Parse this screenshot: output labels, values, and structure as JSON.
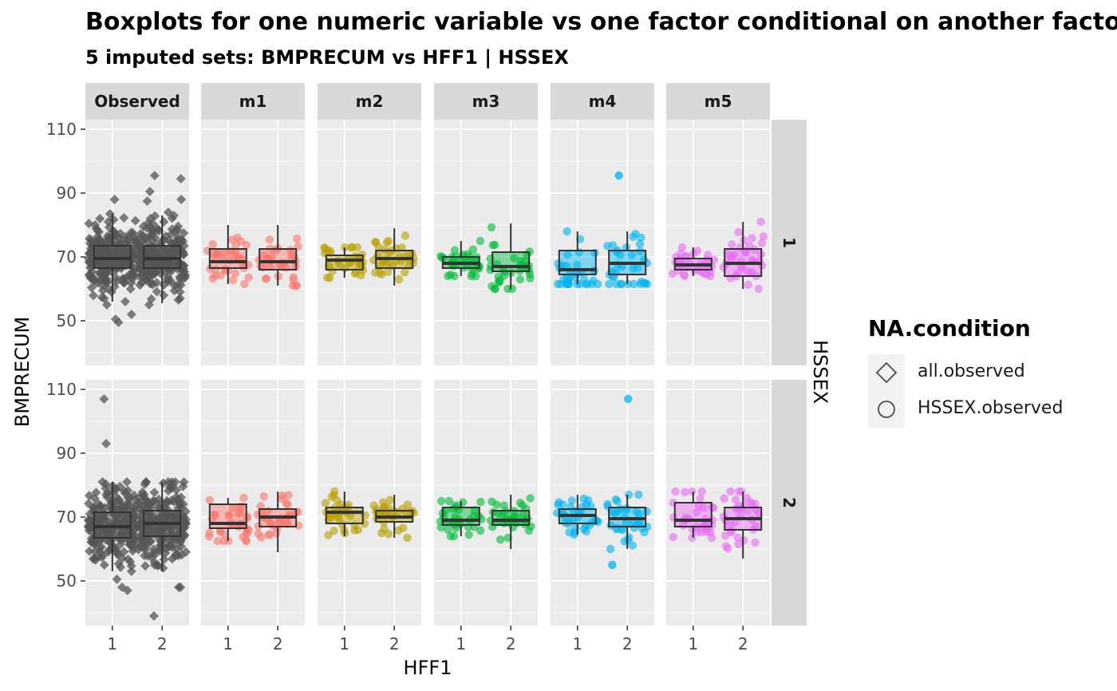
{
  "title": "Boxplots for one numeric variable vs one factor conditional on another factor",
  "subtitle": "5  imputed sets:  BMPRECUM vs HFF1 | HSSEX",
  "legend": {
    "title": "NA.condition",
    "entries": [
      {
        "label": "all.observed",
        "shape": "diamond"
      },
      {
        "label": "HSSEX.observed",
        "shape": "circle"
      }
    ]
  },
  "chart_data": {
    "type": "boxplot",
    "xlabel": "HFF1",
    "ylabel": "BMPRECUM",
    "row_facet_label": "HSSEX",
    "x_categories": [
      "1",
      "2"
    ],
    "col_facets": [
      "Observed",
      "m1",
      "m2",
      "m3",
      "m4",
      "m5"
    ],
    "row_facets": [
      "1",
      "2"
    ],
    "ylim": [
      36,
      113
    ],
    "yticks": [
      50,
      70,
      90,
      110
    ],
    "grid": true,
    "colors": {
      "Observed": "#555555",
      "m1": "#F8766D",
      "m2": "#B79F00",
      "m3": "#00BA38",
      "m4": "#00B4EF",
      "m5": "#E76BF3"
    },
    "boxes": {
      "Observed": {
        "1": [
          {
            "x": "1",
            "q1": 66.5,
            "median": 69.5,
            "q3": 73.5,
            "wlo": 56,
            "whi": 83.5,
            "outliers": [
              88,
              80,
              81,
              82,
              83.5,
              49.5,
              52,
              50.5,
              55,
              57,
              59,
              60
            ]
          },
          {
            "x": "2",
            "q1": 66.5,
            "median": 69.5,
            "q3": 73.5,
            "wlo": 55.5,
            "whi": 83,
            "outliers": [
              94.5,
              95.5,
              90.5,
              88,
              87.5,
              84,
              82,
              81,
              55,
              57,
              58
            ]
          }
        ],
        "2": [
          {
            "x": "1",
            "q1": 63.5,
            "median": 67,
            "q3": 71.5,
            "wlo": 53,
            "whi": 81,
            "outliers": [
              107,
              93,
              81,
              79,
              47,
              48,
              50.5,
              53,
              55,
              56
            ]
          },
          {
            "x": "2",
            "q1": 64,
            "median": 68,
            "q3": 72,
            "wlo": 53,
            "whi": 81,
            "outliers": [
              81,
              80,
              79,
              48,
              48,
              39,
              54,
              55
            ]
          }
        ]
      },
      "m1": {
        "1": [
          {
            "x": "1",
            "q1": 66.5,
            "median": 68.5,
            "q3": 72.5,
            "wlo": 61.5,
            "whi": 80,
            "outliers": []
          },
          {
            "x": "2",
            "q1": 66,
            "median": 68.5,
            "q3": 72.5,
            "wlo": 61,
            "whi": 80,
            "outliers": []
          }
        ],
        "2": [
          {
            "x": "1",
            "q1": 66.5,
            "median": 68,
            "q3": 74,
            "wlo": 62.5,
            "whi": 76,
            "outliers": []
          },
          {
            "x": "2",
            "q1": 67,
            "median": 70,
            "q3": 72.5,
            "wlo": 59,
            "whi": 78,
            "outliers": []
          }
        ]
      },
      "m2": {
        "1": [
          {
            "x": "1",
            "q1": 66,
            "median": 69,
            "q3": 70.5,
            "wlo": 63.5,
            "whi": 73,
            "outliers": []
          },
          {
            "x": "2",
            "q1": 66.5,
            "median": 69.5,
            "q3": 72,
            "wlo": 61,
            "whi": 79,
            "outliers": []
          }
        ],
        "2": [
          {
            "x": "1",
            "q1": 68,
            "median": 71.5,
            "q3": 73,
            "wlo": 64,
            "whi": 78,
            "outliers": []
          },
          {
            "x": "2",
            "q1": 68.5,
            "median": 70,
            "q3": 72,
            "wlo": 63.5,
            "whi": 77,
            "outliers": []
          }
        ]
      },
      "m3": {
        "1": [
          {
            "x": "1",
            "q1": 66.5,
            "median": 68,
            "q3": 70,
            "wlo": 64,
            "whi": 75,
            "outliers": []
          },
          {
            "x": "2",
            "q1": 65.5,
            "median": 67,
            "q3": 71.5,
            "wlo": 60,
            "whi": 80.5,
            "outliers": []
          }
        ],
        "2": [
          {
            "x": "1",
            "q1": 67.5,
            "median": 69,
            "q3": 73,
            "wlo": 64,
            "whi": 75,
            "outliers": []
          },
          {
            "x": "2",
            "q1": 67.5,
            "median": 69,
            "q3": 72,
            "wlo": 60,
            "whi": 77,
            "outliers": []
          }
        ]
      },
      "m4": {
        "1": [
          {
            "x": "1",
            "q1": 64.5,
            "median": 66,
            "q3": 72,
            "wlo": 61.5,
            "whi": 78,
            "outliers": []
          },
          {
            "x": "2",
            "q1": 64.5,
            "median": 68,
            "q3": 72,
            "wlo": 61.5,
            "whi": 78,
            "outliers": [
              95.5
            ]
          }
        ],
        "2": [
          {
            "x": "1",
            "q1": 68,
            "median": 70.5,
            "q3": 72.5,
            "wlo": 64.5,
            "whi": 77,
            "outliers": []
          },
          {
            "x": "2",
            "q1": 67,
            "median": 69.5,
            "q3": 73,
            "wlo": 60,
            "whi": 77,
            "outliers": [
              107,
              55
            ]
          }
        ]
      },
      "m5": {
        "1": [
          {
            "x": "1",
            "q1": 66,
            "median": 67.5,
            "q3": 69.5,
            "wlo": 64,
            "whi": 73,
            "outliers": []
          },
          {
            "x": "2",
            "q1": 64,
            "median": 68,
            "q3": 72.5,
            "wlo": 60,
            "whi": 81,
            "outliers": []
          }
        ],
        "2": [
          {
            "x": "1",
            "q1": 67,
            "median": 69,
            "q3": 74.5,
            "wlo": 63.5,
            "whi": 78,
            "outliers": []
          },
          {
            "x": "2",
            "q1": 66,
            "median": 69.5,
            "q3": 73,
            "wlo": 57,
            "whi": 78,
            "outliers": []
          }
        ]
      }
    }
  }
}
